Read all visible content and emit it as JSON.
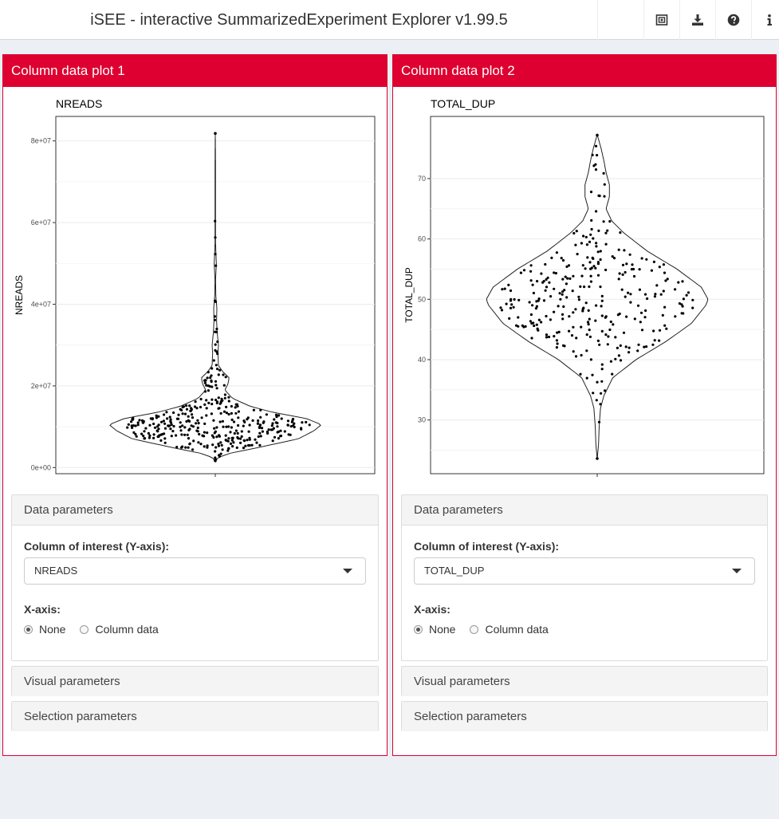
{
  "app": {
    "title": "iSEE - interactive SummarizedExperiment Explorer v1.99.5"
  },
  "nav": [
    {
      "name": "screenshot-icon"
    },
    {
      "name": "download-icon"
    },
    {
      "name": "help-icon"
    },
    {
      "name": "info-icon"
    }
  ],
  "panels": [
    {
      "title": "Column data plot 1",
      "plot_title": "NREADS",
      "y_label": "NREADS",
      "y_ticks": [
        "0e+00",
        "2e+07",
        "4e+07",
        "6e+07",
        "8e+07"
      ],
      "data_params_label": "Data parameters",
      "column_label": "Column of interest (Y-axis):",
      "column_value": "NREADS",
      "xaxis_label": "X-axis:",
      "radio_none": "None",
      "radio_coldata": "Column data",
      "selected": "None",
      "visual_label": "Visual parameters",
      "selection_label": "Selection parameters"
    },
    {
      "title": "Column data plot 2",
      "plot_title": "TOTAL_DUP",
      "y_label": "TOTAL_DUP",
      "y_ticks": [
        "30",
        "40",
        "50",
        "60",
        "70"
      ],
      "data_params_label": "Data parameters",
      "column_label": "Column of interest (Y-axis):",
      "column_value": "TOTAL_DUP",
      "xaxis_label": "X-axis:",
      "radio_none": "None",
      "radio_coldata": "Column data",
      "selected": "None",
      "visual_label": "Visual parameters",
      "selection_label": "Selection parameters"
    }
  ],
  "chart_data": [
    {
      "type": "scatter",
      "subtype": "violin-with-points",
      "title": "NREADS",
      "xlabel": "",
      "ylabel": "NREADS",
      "ylim": [
        -1500000,
        86000000
      ],
      "y_ticks": [
        0,
        20000000,
        40000000,
        60000000,
        80000000
      ],
      "grid": true,
      "violin_profile": [
        [
          1500000,
          0.0
        ],
        [
          2500000,
          0.03
        ],
        [
          3500000,
          0.14
        ],
        [
          5000000,
          0.42
        ],
        [
          7000000,
          0.78
        ],
        [
          9000000,
          0.93
        ],
        [
          10500000,
          1.0
        ],
        [
          12000000,
          0.86
        ],
        [
          13500000,
          0.55
        ],
        [
          15000000,
          0.33
        ],
        [
          17000000,
          0.16
        ],
        [
          19000000,
          0.09
        ],
        [
          20500000,
          0.12
        ],
        [
          22000000,
          0.13
        ],
        [
          23500000,
          0.07
        ],
        [
          25000000,
          0.03
        ],
        [
          28000000,
          0.025
        ],
        [
          30000000,
          0.03
        ],
        [
          33000000,
          0.018
        ],
        [
          36000000,
          0.012
        ],
        [
          39000000,
          0.015
        ],
        [
          42000000,
          0.005
        ],
        [
          46000000,
          0.0025
        ],
        [
          50000000,
          0.01
        ],
        [
          55000000,
          0.0025
        ],
        [
          65000000,
          0.002
        ],
        [
          75000000,
          0.002
        ],
        [
          82000000,
          0.0
        ]
      ],
      "n_points": 360
    },
    {
      "type": "scatter",
      "subtype": "violin-with-points",
      "title": "TOTAL_DUP",
      "xlabel": "",
      "ylabel": "TOTAL_DUP",
      "ylim": [
        21.1,
        80.3
      ],
      "y_ticks": [
        30,
        40,
        50,
        60,
        70
      ],
      "grid": true,
      "violin_profile": [
        [
          23.5,
          0.0
        ],
        [
          26,
          0.012
        ],
        [
          29,
          0.018
        ],
        [
          32,
          0.03
        ],
        [
          34,
          0.06
        ],
        [
          37,
          0.14
        ],
        [
          40,
          0.35
        ],
        [
          43,
          0.62
        ],
        [
          46,
          0.85
        ],
        [
          49,
          0.98
        ],
        [
          50,
          1.0
        ],
        [
          52,
          0.94
        ],
        [
          55,
          0.72
        ],
        [
          58,
          0.45
        ],
        [
          61,
          0.24
        ],
        [
          63,
          0.13
        ],
        [
          65,
          0.08
        ],
        [
          67,
          0.11
        ],
        [
          69,
          0.11
        ],
        [
          71,
          0.08
        ],
        [
          73,
          0.06
        ],
        [
          75,
          0.035
        ],
        [
          77.3,
          0.0
        ]
      ],
      "n_points": 300
    }
  ]
}
